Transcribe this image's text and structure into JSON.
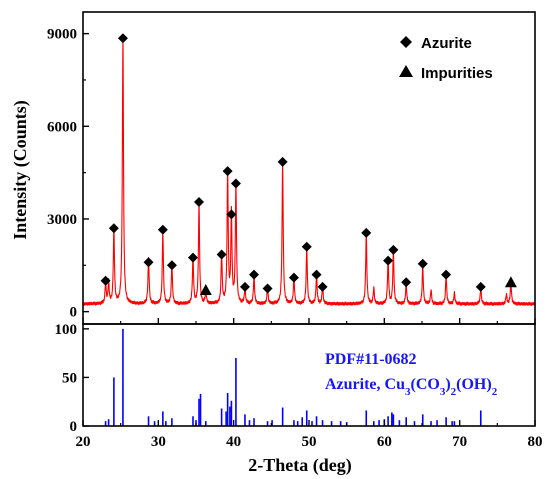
{
  "chart_data": [
    {
      "type": "line",
      "panel": "top",
      "xlabel": "2-Theta (deg)",
      "ylabel": "Intensity (Counts)",
      "xlim": [
        20,
        80
      ],
      "ylim": [
        -400,
        9700
      ],
      "xticks": [
        20,
        30,
        40,
        50,
        60,
        70,
        80
      ],
      "yticks": [
        0,
        3000,
        6000,
        9000
      ],
      "tick_labels_x": [
        "20",
        "30",
        "40",
        "50",
        "60",
        "70",
        "80"
      ],
      "tick_labels_y": [
        "0",
        "3000",
        "6000",
        "9000"
      ],
      "series": [
        {
          "color": "#ff0000",
          "baseline": 250,
          "peaks": [
            [
              23.0,
              650
            ],
            [
              23.4,
              700
            ],
            [
              24.1,
              2400
            ],
            [
              25.3,
              8500
            ],
            [
              28.7,
              1500
            ],
            [
              30.6,
              2300
            ],
            [
              31.8,
              1250
            ],
            [
              34.6,
              1500
            ],
            [
              35.4,
              3200
            ],
            [
              36.3,
              400
            ],
            [
              38.4,
              1550
            ],
            [
              39.2,
              4200
            ],
            [
              39.7,
              2900
            ],
            [
              40.3,
              3800
            ],
            [
              41.5,
              500
            ],
            [
              42.7,
              900
            ],
            [
              44.5,
              500
            ],
            [
              46.5,
              4500
            ],
            [
              48.0,
              850
            ],
            [
              49.7,
              1800
            ],
            [
              51.0,
              950
            ],
            [
              51.8,
              550
            ],
            [
              57.6,
              2250
            ],
            [
              58.6,
              500
            ],
            [
              60.5,
              1450
            ],
            [
              61.2,
              1700
            ],
            [
              62.9,
              650
            ],
            [
              65.1,
              1200
            ],
            [
              66.2,
              450
            ],
            [
              68.2,
              900
            ],
            [
              69.3,
              350
            ],
            [
              72.8,
              500
            ],
            [
              76.2,
              300
            ],
            [
              76.8,
              700
            ]
          ]
        }
      ],
      "markers": [
        {
          "symbol": "diamond",
          "x": 23.0,
          "y": 1000
        },
        {
          "symbol": "diamond",
          "x": 24.1,
          "y": 2700
        },
        {
          "symbol": "diamond",
          "x": 25.3,
          "y": 8850
        },
        {
          "symbol": "diamond",
          "x": 28.7,
          "y": 1600
        },
        {
          "symbol": "diamond",
          "x": 30.6,
          "y": 2650
        },
        {
          "symbol": "diamond",
          "x": 31.8,
          "y": 1500
        },
        {
          "symbol": "diamond",
          "x": 34.6,
          "y": 1750
        },
        {
          "symbol": "diamond",
          "x": 35.4,
          "y": 3550
        },
        {
          "symbol": "triangle",
          "x": 36.3,
          "y": 700
        },
        {
          "symbol": "diamond",
          "x": 38.4,
          "y": 1850
        },
        {
          "symbol": "diamond",
          "x": 39.2,
          "y": 4550
        },
        {
          "symbol": "diamond",
          "x": 39.7,
          "y": 3150
        },
        {
          "symbol": "diamond",
          "x": 40.3,
          "y": 4150
        },
        {
          "symbol": "diamond",
          "x": 41.5,
          "y": 800
        },
        {
          "symbol": "diamond",
          "x": 42.7,
          "y": 1200
        },
        {
          "symbol": "diamond",
          "x": 44.5,
          "y": 750
        },
        {
          "symbol": "diamond",
          "x": 46.5,
          "y": 4850
        },
        {
          "symbol": "diamond",
          "x": 48.0,
          "y": 1100
        },
        {
          "symbol": "diamond",
          "x": 49.7,
          "y": 2100
        },
        {
          "symbol": "diamond",
          "x": 51.0,
          "y": 1200
        },
        {
          "symbol": "diamond",
          "x": 51.8,
          "y": 800
        },
        {
          "symbol": "diamond",
          "x": 57.6,
          "y": 2550
        },
        {
          "symbol": "diamond",
          "x": 60.5,
          "y": 1650
        },
        {
          "symbol": "diamond",
          "x": 61.2,
          "y": 2000
        },
        {
          "symbol": "diamond",
          "x": 62.9,
          "y": 950
        },
        {
          "symbol": "diamond",
          "x": 65.1,
          "y": 1550
        },
        {
          "symbol": "diamond",
          "x": 68.2,
          "y": 1200
        },
        {
          "symbol": "diamond",
          "x": 72.8,
          "y": 800
        },
        {
          "symbol": "triangle",
          "x": 76.8,
          "y": 950
        }
      ],
      "legend": {
        "position": "top-right",
        "entries": [
          {
            "symbol": "diamond",
            "label": "Azurite"
          },
          {
            "symbol": "triangle",
            "label": "Impurities"
          }
        ]
      }
    },
    {
      "type": "bar",
      "panel": "bottom",
      "xlim": [
        20,
        80
      ],
      "ylim": [
        0,
        105
      ],
      "yticks": [
        0,
        50,
        100
      ],
      "tick_labels_y": [
        "0",
        "50",
        "100"
      ],
      "color": "#0000ff",
      "reference": {
        "line1": "PDF#11-0682",
        "line2_parts": [
          {
            "text": "Azurite, Cu",
            "sub": false
          },
          {
            "text": "3",
            "sub": true
          },
          {
            "text": "(CO",
            "sub": false
          },
          {
            "text": "3",
            "sub": true
          },
          {
            "text": ")",
            "sub": false
          },
          {
            "text": "2",
            "sub": true
          },
          {
            "text": "(OH)",
            "sub": false
          },
          {
            "text": "2",
            "sub": true
          }
        ]
      },
      "x": [
        23.0,
        23.4,
        24.1,
        25.3,
        28.7,
        29.5,
        30.6,
        31.0,
        31.8,
        34.6,
        35.0,
        35.4,
        35.6,
        36.3,
        38.4,
        39.0,
        39.2,
        39.5,
        39.7,
        40.3,
        41.5,
        42.1,
        42.7,
        44.5,
        45.1,
        46.5,
        48.0,
        48.5,
        49.1,
        49.7,
        50.4,
        51.0,
        51.8,
        53.0,
        54.2,
        55.0,
        57.6,
        58.6,
        59.3,
        60.0,
        60.5,
        61.0,
        61.2,
        62.0,
        62.9,
        64.0,
        65.1,
        66.2,
        67.0,
        68.2,
        69.0,
        69.3,
        72.8
      ],
      "values": [
        5,
        7,
        50,
        100,
        10,
        5,
        15,
        5,
        8,
        10,
        6,
        28,
        33,
        5,
        18,
        15,
        34,
        20,
        26,
        70,
        12,
        6,
        8,
        5,
        6,
        19,
        6,
        5,
        9,
        16,
        5,
        10,
        6,
        5,
        5,
        4,
        16,
        5,
        6,
        7,
        10,
        14,
        12,
        6,
        9,
        5,
        12,
        5,
        6,
        9,
        5,
        5,
        16
      ]
    }
  ]
}
